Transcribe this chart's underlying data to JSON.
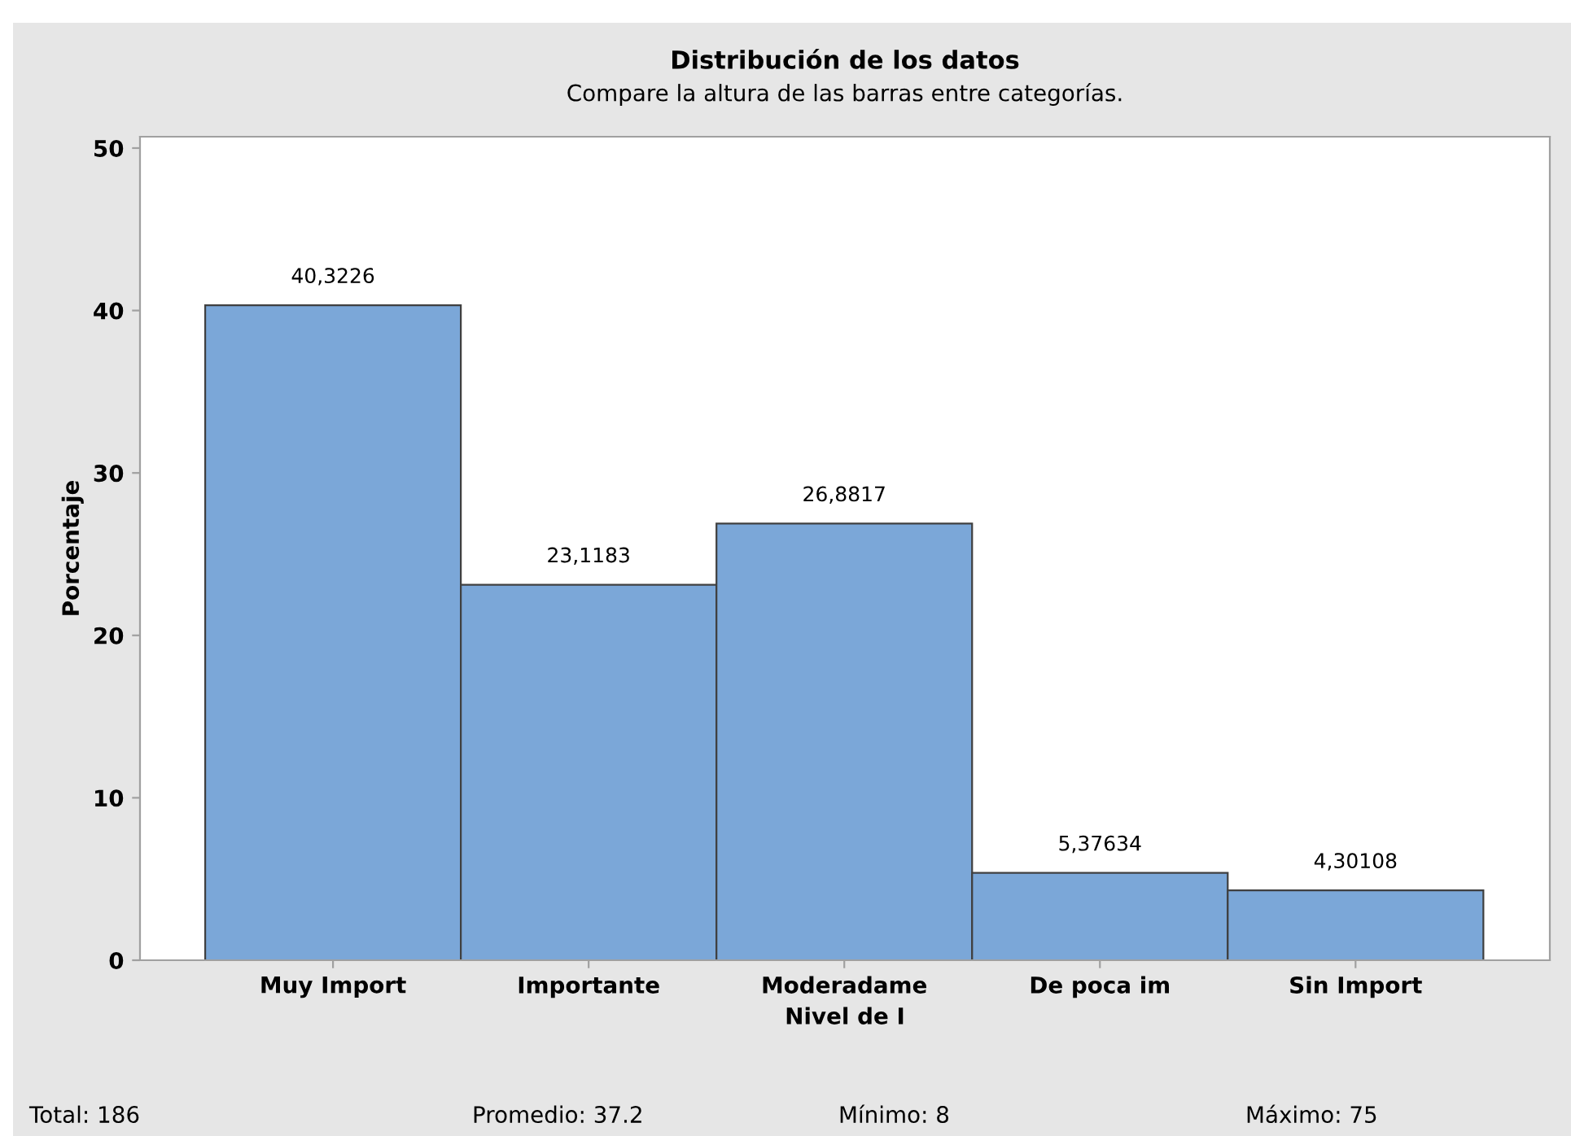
{
  "chart_data": {
    "type": "bar",
    "title": "Distribución de los datos",
    "subtitle": "Compare la altura de las barras entre categorías.",
    "xlabel": "Nivel de I",
    "ylabel": "Porcentaje",
    "categories": [
      "Muy Import",
      "Importante",
      "Moderadame",
      "De poca im",
      "Sin Import"
    ],
    "values": [
      40.3226,
      23.1183,
      26.8817,
      5.37634,
      4.30108
    ],
    "value_labels": [
      "40,3226",
      "23,1183",
      "26,8817",
      "5,37634",
      "4,30108"
    ],
    "color": "#7ba7d8",
    "ylim": [
      0,
      50.7
    ],
    "yticks": [
      0,
      10,
      20,
      30,
      40,
      50
    ],
    "grid": false,
    "legend": false,
    "annotations": [
      "Total: 186",
      "Promedio: 37.2",
      "Mínimo: 8",
      "Máximo: 75"
    ]
  }
}
